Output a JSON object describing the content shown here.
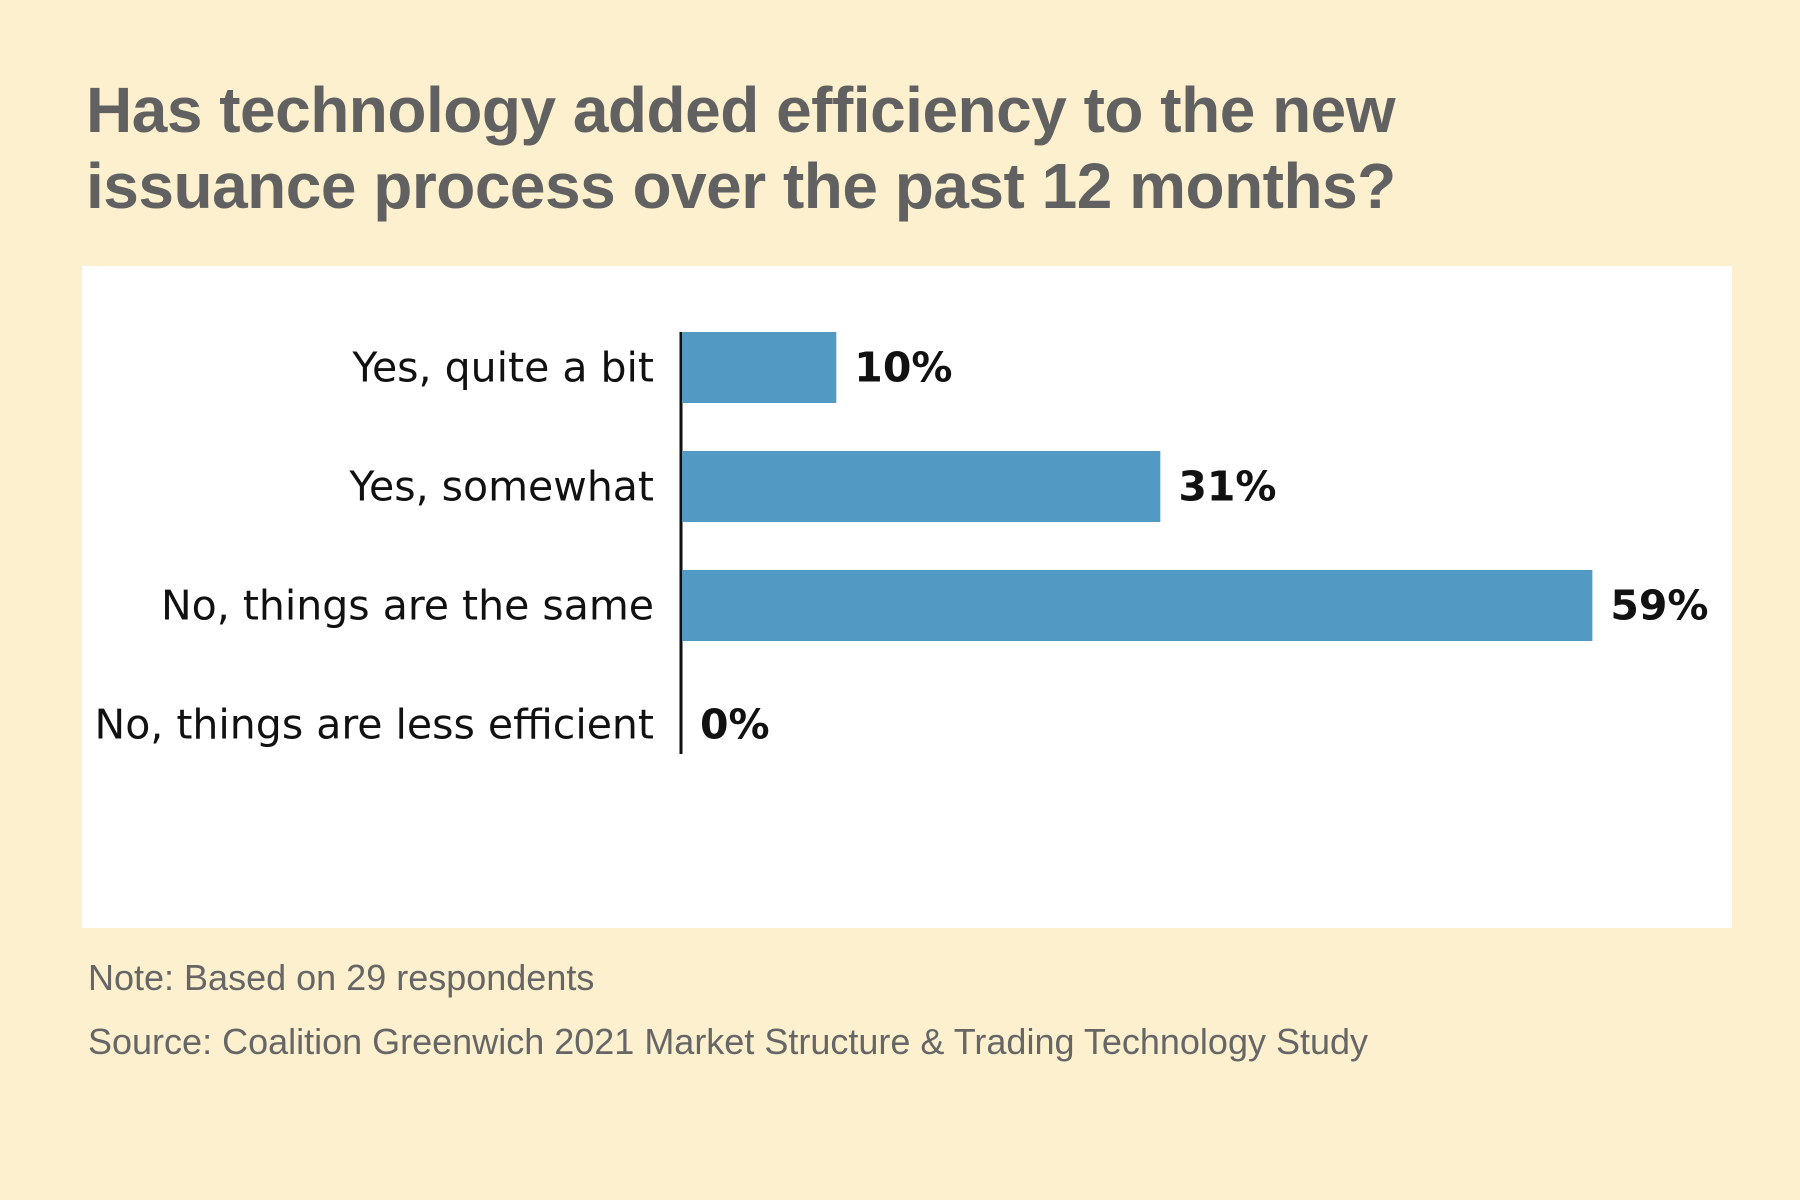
{
  "title": "Has technology added efficiency to the new issuance process over the past 12 months?",
  "note": "Note: Based on 29 respondents",
  "source": "Source: Coalition Greenwich 2021 Market Structure & Trading Technology Study",
  "colors": {
    "background": "#fdf0cf",
    "bar": "#5299c3",
    "text_title": "#616161",
    "text_foot": "#666666"
  },
  "chart_data": {
    "type": "bar",
    "orientation": "horizontal",
    "categories": [
      "Yes, quite a bit",
      "Yes, somewhat",
      "No, things are the same",
      "No, things are less efficient"
    ],
    "values": [
      10,
      31,
      59,
      0
    ],
    "value_labels": [
      "10%",
      "31%",
      "59%",
      "0%"
    ],
    "unit": "%",
    "xlim": [
      0,
      59
    ],
    "grid": false,
    "legend": "none"
  }
}
